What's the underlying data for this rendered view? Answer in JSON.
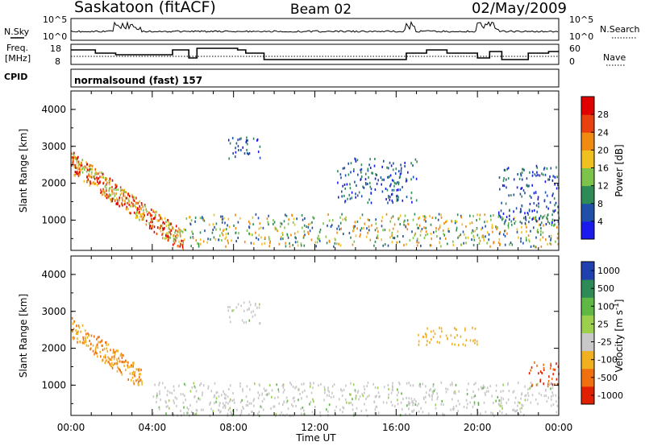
{
  "header": {
    "site": "Saskatoon (fitACF)",
    "beam": "Beam 02",
    "date": "02/May/2009"
  },
  "noise_panel": {
    "left_label": "N.Sky",
    "right_label": "N.Search",
    "tick_top": "10^5",
    "tick_bottom": "10^0"
  },
  "freq_panel": {
    "left_label_line1": "Freq.",
    "left_label_line2": "[MHz]",
    "left_ticks": [
      "18",
      "8"
    ],
    "right_label": "Nave",
    "right_ticks": [
      "60",
      "0"
    ]
  },
  "cpid": {
    "label": "CPID",
    "text": "normalsound (fast) 157"
  },
  "x_axis": {
    "title": "Time UT",
    "ticks": [
      "00:00",
      "04:00",
      "08:00",
      "12:00",
      "16:00",
      "20:00",
      "00:00"
    ]
  },
  "chart_data": [
    {
      "type": "heatmap",
      "ylabel": "Slant Range [km]",
      "yticks": [
        "1000",
        "2000",
        "3000",
        "4000"
      ],
      "ylim": [
        180,
        4500
      ],
      "xlabel": "Time UT",
      "xlim_hours": [
        0,
        24
      ],
      "colorbar": {
        "label": "Power [dB]",
        "ticks": [
          "4",
          "8",
          "12",
          "16",
          "20",
          "24",
          "28"
        ],
        "colors": [
          "#1a1aee",
          "#1f4fa8",
          "#2e8b57",
          "#7dc34a",
          "#f0c020",
          "#f08a10",
          "#e8400e",
          "#e00000"
        ]
      },
      "features": [
        {
          "time_hours": [
            0.0,
            5.5
          ],
          "range_km": [
            200,
            2600
          ],
          "level": "high, descending arc"
        },
        {
          "time_hours": [
            5.5,
            24.0
          ],
          "range_km": [
            300,
            1200
          ],
          "level": "moderate"
        },
        {
          "time_hours": [
            7.7,
            9.3
          ],
          "range_km": [
            2700,
            3300
          ],
          "level": "low"
        },
        {
          "time_hours": [
            13.0,
            17.0
          ],
          "range_km": [
            1500,
            2700
          ],
          "level": "low"
        },
        {
          "time_hours": [
            21.0,
            24.0
          ],
          "range_km": [
            900,
            2500
          ],
          "level": "low"
        }
      ]
    },
    {
      "type": "heatmap",
      "ylabel": "Slant Range [km]",
      "yticks": [
        "1000",
        "2000",
        "3000",
        "4000"
      ],
      "ylim": [
        180,
        4500
      ],
      "xlabel": "Time UT",
      "xlim_hours": [
        0,
        24
      ],
      "colorbar": {
        "label": "Velocity [m s^-1]",
        "ticks": [
          "1000",
          "500",
          "100",
          "25",
          "-25",
          "-100",
          "-500",
          "-1000"
        ],
        "colors": [
          "#2040b0",
          "#2e8b57",
          "#5fb844",
          "#9cd04c",
          "#c8c8c8",
          "#f0b020",
          "#f07010",
          "#e02000"
        ]
      },
      "features": [
        {
          "time_hours": [
            0.0,
            3.5
          ],
          "range_km": [
            1000,
            2600
          ],
          "level": "negative, -100 to -500"
        },
        {
          "time_hours": [
            4.0,
            24.0
          ],
          "range_km": [
            200,
            1100
          ],
          "level": "near zero (ground scatter)"
        },
        {
          "time_hours": [
            7.7,
            9.3
          ],
          "range_km": [
            2700,
            3300
          ],
          "level": "near zero"
        },
        {
          "time_hours": [
            17.0,
            20.0
          ],
          "range_km": [
            2100,
            2600
          ],
          "level": "negative, -100"
        },
        {
          "time_hours": [
            22.5,
            24.0
          ],
          "range_km": [
            1000,
            1700
          ],
          "level": "negative, -500"
        }
      ]
    }
  ]
}
